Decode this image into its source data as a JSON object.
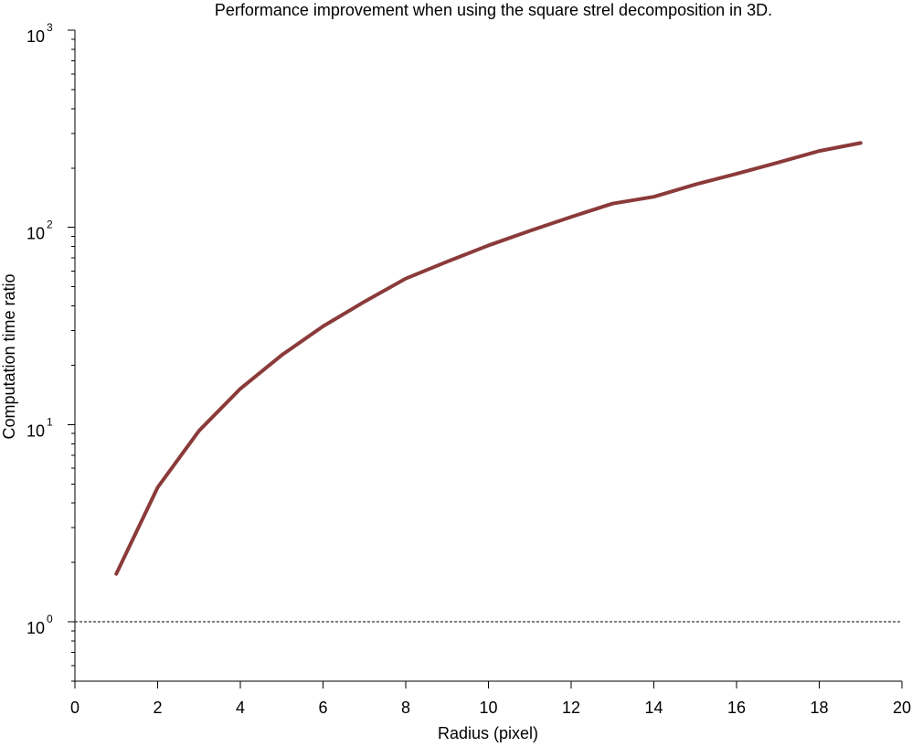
{
  "chart_data": {
    "type": "line",
    "title": "Performance improvement when using the square strel decomposition in 3D.",
    "xlabel": "Radius (pixel)",
    "ylabel": "Computation time ratio",
    "xlim": [
      0,
      20
    ],
    "ylim": [
      0.5,
      1000
    ],
    "yscale": "log",
    "grid": false,
    "x_ticks": [
      0,
      2,
      4,
      6,
      8,
      10,
      12,
      14,
      16,
      18,
      20
    ],
    "y_ticks": [
      {
        "value": 1,
        "base": "10",
        "exp": "0"
      },
      {
        "value": 10,
        "base": "10",
        "exp": "1"
      },
      {
        "value": 100,
        "base": "10",
        "exp": "2"
      },
      {
        "value": 1000,
        "base": "10",
        "exp": "3"
      }
    ],
    "reference_line": {
      "y": 1,
      "style": "dashed",
      "color": "#000000"
    },
    "x": [
      1,
      2,
      3,
      4,
      5,
      6,
      7,
      8,
      9,
      10,
      11,
      12,
      13,
      14,
      15,
      16,
      17,
      18,
      19
    ],
    "series": [
      {
        "color": "#8b3a3a",
        "values": [
          1.75,
          4.8,
          9.3,
          15.2,
          22.5,
          31.5,
          42,
          55,
          67,
          81,
          96,
          113,
          132,
          143,
          165,
          187,
          213,
          244,
          268
        ]
      }
    ]
  }
}
